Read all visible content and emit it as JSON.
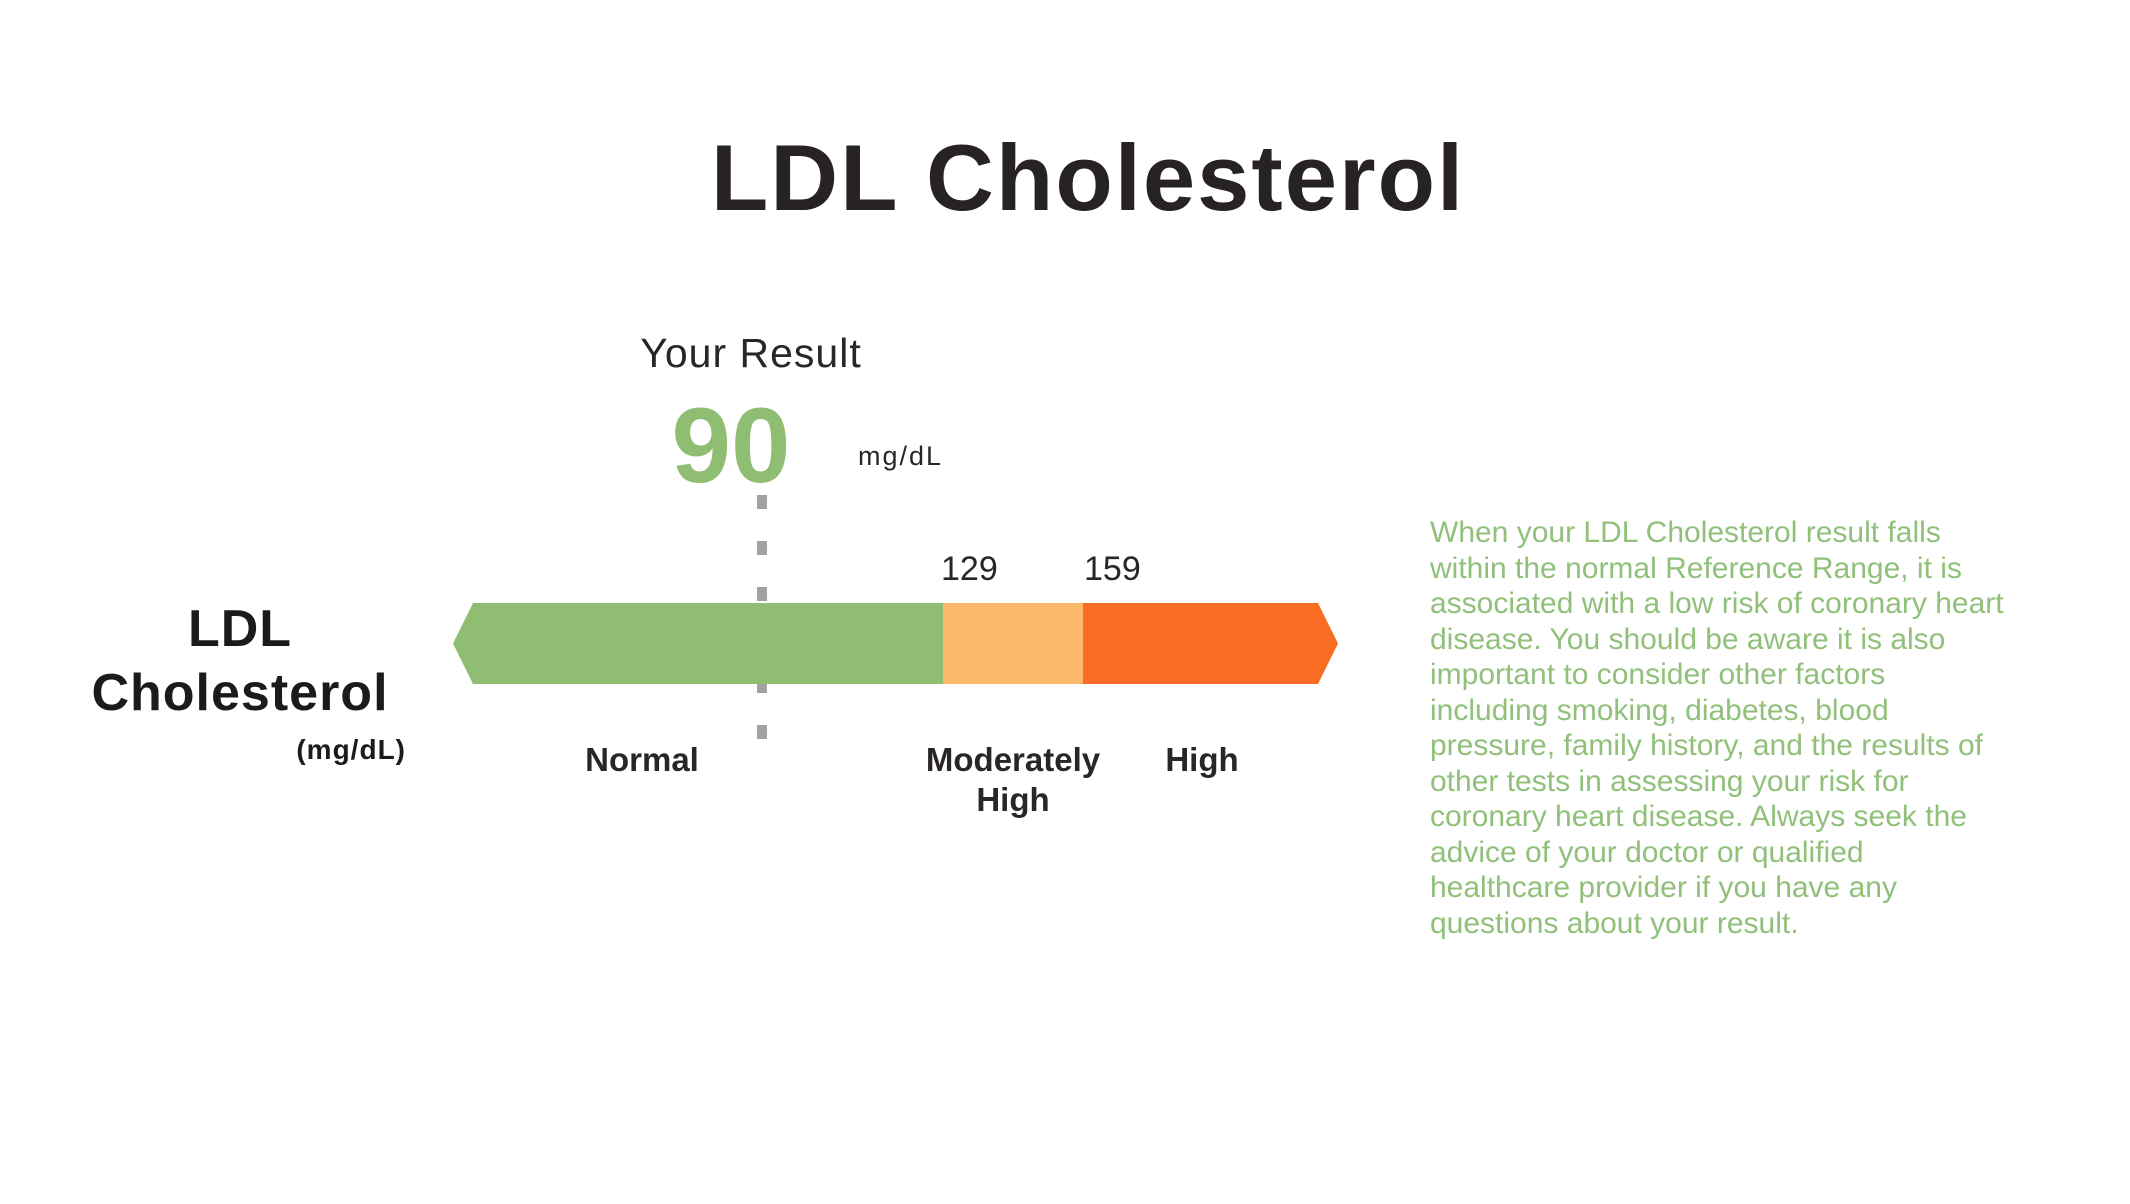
{
  "page": {
    "title": "LDL Cholesterol"
  },
  "result": {
    "label": "Your Result",
    "value": "90",
    "unit": "mg/dL"
  },
  "gauge": {
    "axis_label": {
      "line1": "LDL",
      "line2": "Cholesterol",
      "unit": "(mg/dL)"
    },
    "thresholds": [
      "129",
      "159"
    ],
    "segments": [
      {
        "label": "Normal",
        "color": "#8fbe72"
      },
      {
        "label": "Moderately High",
        "color": "#fcb96c"
      },
      {
        "label": "High",
        "color": "#fa6c23"
      }
    ],
    "marker": {
      "value": 90,
      "color": "#a2a2a2"
    }
  },
  "interpretation": {
    "text": "When your LDL Cholesterol result falls within the normal Reference Range, it is associated with a low risk of coronary heart disease. You should be aware it is also important to consider other factors including smoking, diabetes, blood pressure, family history, and the results of other tests in assessing your risk for coronary heart disease. Always seek the advice of your doctor or qualified healthcare provider if you have any questions about your result.",
    "color": "#90c07a"
  },
  "colors": {
    "title_text": "#272223",
    "body_text": "#2a2627",
    "result_green": "#8fbe72",
    "normal_green": "#8fbe72",
    "moderately_high_orange": "#fcb96c",
    "high_orange": "#fa6c23",
    "marker_gray": "#a2a2a2",
    "background": "#ffffff"
  },
  "chart_data": {
    "type": "bar",
    "subtype": "linear-gauge",
    "orientation": "horizontal",
    "title": "LDL Cholesterol",
    "xlabel": "LDL Cholesterol (mg/dL)",
    "unit": "mg/dL",
    "result_value": 90,
    "result_zone": "Normal",
    "tick_labels": [
      "129",
      "159"
    ],
    "segments": [
      {
        "label": "Normal",
        "min": null,
        "max": 129,
        "color": "#8fbe72"
      },
      {
        "label": "Moderately High",
        "min": 129,
        "max": 159,
        "color": "#fcb96c"
      },
      {
        "label": "High",
        "min": 159,
        "max": null,
        "color": "#fa6c23"
      }
    ],
    "marker": {
      "value": 90,
      "style": "vertical-dashed-line",
      "color": "#a2a2a2"
    },
    "annotation": "When your LDL Cholesterol result falls within the normal Reference Range, it is associated with a low risk of coronary heart disease. You should be aware it is also important to consider other factors including smoking, diabetes, blood pressure, family history, and the results of other tests in assessing your risk for coronary heart disease. Always seek the advice of your doctor or qualified healthcare provider if you have any questions about your result.",
    "legend": false,
    "grid": false
  }
}
